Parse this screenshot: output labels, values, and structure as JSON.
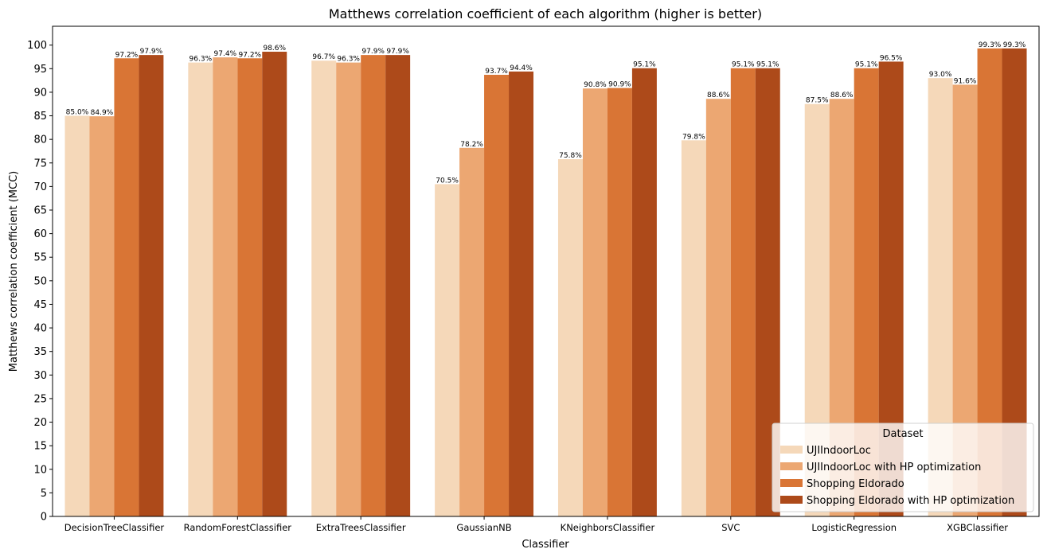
{
  "chart_data": {
    "type": "bar",
    "title": "Matthews correlation coefficient of each algorithm (higher is better)",
    "xlabel": "Classifier",
    "ylabel": "Matthews correlation coefficient (MCC)",
    "ylim": [
      0,
      104
    ],
    "yticks": [
      0,
      5,
      10,
      15,
      20,
      25,
      30,
      35,
      40,
      45,
      50,
      55,
      60,
      65,
      70,
      75,
      80,
      85,
      90,
      95,
      100
    ],
    "grid": false,
    "legend_title": "Dataset",
    "legend_position": "bottom-right",
    "categories": [
      "DecisionTreeClassifier",
      "RandomForestClassifier",
      "ExtraTreesClassifier",
      "GaussianNB",
      "KNeighborsClassifier",
      "SVC",
      "LogisticRegression",
      "XGBClassifier"
    ],
    "series": [
      {
        "name": "UJIIndoorLoc",
        "color": "#f5d8b9",
        "values": [
          85.0,
          96.3,
          96.7,
          70.5,
          75.8,
          79.8,
          87.5,
          93.0
        ],
        "labels": [
          "85.0%",
          "96.3%",
          "96.7%",
          "70.5%",
          "75.8%",
          "79.8%",
          "87.5%",
          "93.0%"
        ]
      },
      {
        "name": "UJIIndoorLoc with HP optimization",
        "color": "#eca772",
        "values": [
          84.9,
          97.4,
          96.3,
          78.2,
          90.8,
          88.6,
          88.6,
          91.6
        ],
        "labels": [
          "84.9%",
          "97.4%",
          "96.3%",
          "78.2%",
          "90.8%",
          "88.6%",
          "88.6%",
          "91.6%"
        ]
      },
      {
        "name": "Shopping Eldorado",
        "color": "#d97535",
        "values": [
          97.2,
          97.2,
          97.9,
          93.7,
          90.9,
          95.1,
          95.1,
          99.3
        ],
        "labels": [
          "97.2%",
          "97.2%",
          "97.9%",
          "93.7%",
          "90.9%",
          "95.1%",
          "95.1%",
          "99.3%"
        ]
      },
      {
        "name": "Shopping Eldorado with HP optimization",
        "color": "#ad4a1a",
        "values": [
          97.9,
          98.6,
          97.9,
          94.4,
          95.1,
          95.1,
          96.5,
          99.3
        ],
        "labels": [
          "97.9%",
          "98.6%",
          "97.9%",
          "94.4%",
          "95.1%",
          "95.1%",
          "96.5%",
          "99.3%"
        ]
      }
    ]
  }
}
